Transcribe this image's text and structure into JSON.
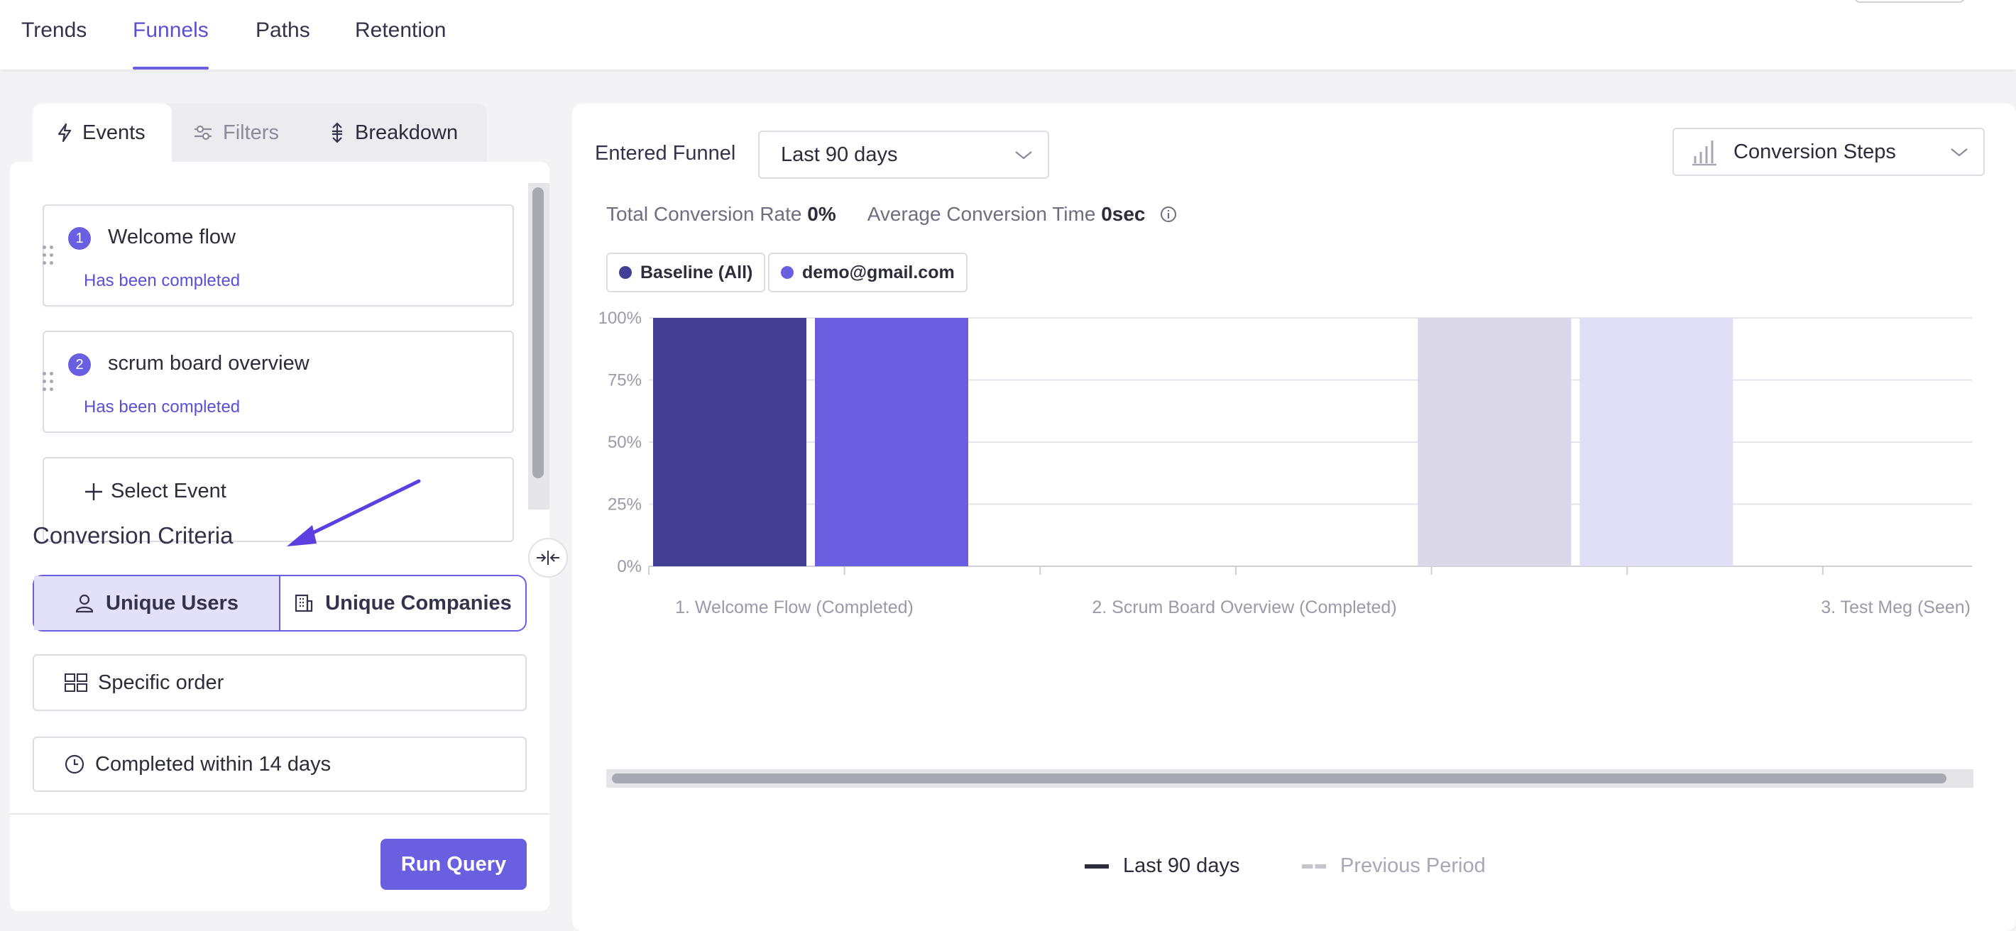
{
  "nav": {
    "tabs": [
      {
        "label": "Trends"
      },
      {
        "label": "Funnels"
      },
      {
        "label": "Paths"
      },
      {
        "label": "Retention"
      }
    ],
    "active": "Funnels"
  },
  "left_panel": {
    "tabs": [
      {
        "label": "Events",
        "icon": "bolt-icon"
      },
      {
        "label": "Filters",
        "icon": "sliders-icon"
      },
      {
        "label": "Breakdown",
        "icon": "breakdown-icon"
      }
    ],
    "events": [
      {
        "number": "1",
        "title": "Welcome flow",
        "status": "Has been completed"
      },
      {
        "number": "2",
        "title": "scrum board overview",
        "status": "Has been completed"
      }
    ],
    "select_event_label": "Select Event",
    "criteria_title": "Conversion Criteria",
    "criteria_options": {
      "users": "Unique Users",
      "companies": "Unique Companies"
    },
    "order_label": "Specific order",
    "within_label": "Completed within 14 days",
    "run_label": "Run Query"
  },
  "right_panel": {
    "entered_funnel_label": "Entered Funnel",
    "range_value": "Last 90 days",
    "view_value": "Conversion Steps",
    "stats": {
      "rate_label": "Total Conversion Rate",
      "rate_value": "0%",
      "time_label": "Average Conversion Time",
      "time_value": "0sec"
    },
    "chips": [
      {
        "label": "Baseline (All)",
        "color": "#433f94"
      },
      {
        "label": "demo@gmail.com",
        "color": "#6a5fe0"
      }
    ],
    "legend": {
      "current": "Last 90 days",
      "previous": "Previous Period"
    }
  },
  "chart_data": {
    "type": "bar",
    "categories": [
      "1. Welcome Flow (Completed)",
      "2. Scrum Board Overview (Completed)",
      "3. Test Meg (Seen)"
    ],
    "series": [
      {
        "name": "Baseline (All)",
        "values": [
          100,
          0,
          0
        ],
        "color": "#433f94"
      },
      {
        "name": "demo@gmail.com",
        "values": [
          100,
          0,
          0
        ],
        "color": "#6a5fe0"
      },
      {
        "name": "Previous Period · Baseline (All)",
        "values": [
          0,
          100,
          0
        ],
        "color": "#dad8e8"
      },
      {
        "name": "Previous Period · demo@gmail.com",
        "values": [
          0,
          100,
          0
        ],
        "color": "#e0dff7"
      }
    ],
    "yticks": [
      "100%",
      "75%",
      "50%",
      "25%",
      "0%"
    ],
    "ylim": [
      0,
      100
    ],
    "grid": true
  }
}
